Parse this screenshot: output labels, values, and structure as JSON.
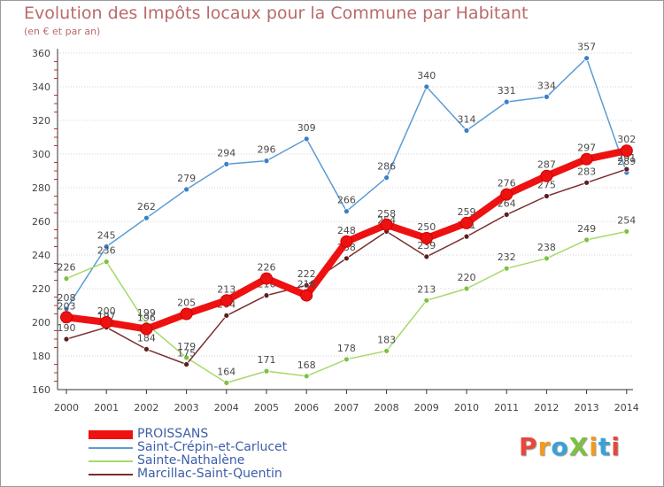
{
  "header": {
    "title": "Evolution des Impôts locaux pour la Commune par Habitant",
    "subtitle": "(en € et par an)"
  },
  "logo": {
    "text": "ProXiti",
    "colors": [
      "#e8463a",
      "#f39a1e",
      "#3aa0d8",
      "#7cc142",
      "#f39a1e",
      "#3aa0d8",
      "#e8463a"
    ]
  },
  "chart_data": {
    "type": "line",
    "title": "Evolution des Impôts locaux pour la Commune par Habitant",
    "subtitle": "(en € et par an)",
    "xlabel": "",
    "ylabel": "",
    "x": [
      "2000",
      "2001",
      "2002",
      "2003",
      "2004",
      "2005",
      "2006",
      "2007",
      "2008",
      "2009",
      "2010",
      "2011",
      "2012",
      "2013",
      "2014"
    ],
    "ylim": [
      160,
      360
    ],
    "yticks": [
      "160",
      "180",
      "200",
      "220",
      "240",
      "260",
      "280",
      "300",
      "320",
      "340",
      "360"
    ],
    "grid": "horizontal",
    "legend_position": "bottom-left",
    "series": [
      {
        "name": "Saint-Crépin-et-Carlucet",
        "color": "#5b9bd5",
        "point_color": "#3b7fc4",
        "width": 1.5,
        "values": [
          208,
          245,
          262,
          279,
          294,
          296,
          309,
          266,
          286,
          340,
          314,
          331,
          334,
          357,
          289
        ],
        "labels": [
          "208",
          "245",
          "262",
          "279",
          "294",
          "296",
          "309",
          "266",
          "286",
          "340",
          "314",
          "331",
          "334",
          "357",
          "289"
        ]
      },
      {
        "name": "Sainte-Nathalène",
        "color": "#a6d96a",
        "point_color": "#7cc142",
        "width": 1.5,
        "values": [
          226,
          236,
          199,
          179,
          164,
          171,
          168,
          178,
          183,
          213,
          220,
          232,
          238,
          249,
          254
        ],
        "labels": [
          "226",
          "236",
          "199",
          "179",
          "164",
          "171",
          "168",
          "178",
          "183",
          "213",
          "220",
          "232",
          "238",
          "249",
          "254"
        ]
      },
      {
        "name": "Marcillac-Saint-Quentin",
        "color": "#7a2e2e",
        "point_color": "#5a1f1f",
        "width": 1.5,
        "values": [
          190,
          197,
          184,
          175,
          204,
          216,
          222,
          238,
          254,
          239,
          251,
          264,
          275,
          283,
          291
        ],
        "labels": [
          "190",
          "197",
          "184",
          "175",
          "204",
          "216",
          "222",
          "238",
          "254",
          "239",
          "251",
          "264",
          "275",
          "283",
          "291"
        ]
      },
      {
        "name": "PROISSANS",
        "color": "#ee1111",
        "point_color": "#ee1111",
        "width": 8,
        "values": [
          203,
          200,
          196,
          205,
          213,
          226,
          216,
          248,
          258,
          250,
          259,
          276,
          287,
          297,
          302
        ],
        "labels": [
          "203",
          "200",
          "196",
          "205",
          "213",
          "226",
          "216",
          "248",
          "258",
          "250",
          "259",
          "276",
          "287",
          "297",
          "302"
        ]
      }
    ],
    "legend_order": [
      "PROISSANS",
      "Saint-Crépin-et-Carlucet",
      "Sainte-Nathalène",
      "Marcillac-Saint-Quentin"
    ]
  }
}
